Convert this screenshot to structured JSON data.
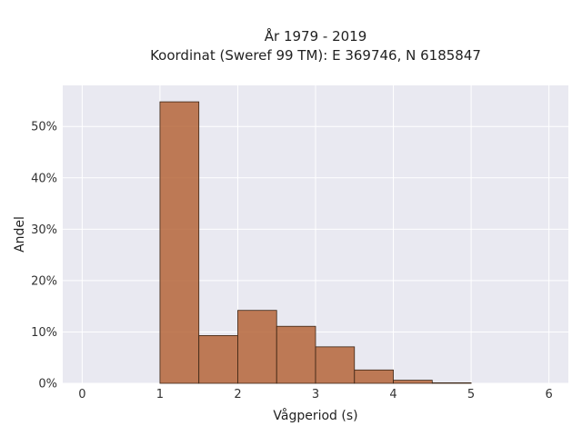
{
  "chart_data": {
    "type": "bar",
    "title_lines": [
      "År 1979 - 2019",
      "Koordinat (Sweref 99 TM): E 369746, N 6185847"
    ],
    "xlabel": "Vågperiod (s)",
    "ylabel": "Andel",
    "xlim": [
      -0.25,
      6.25
    ],
    "ylim": [
      0,
      58
    ],
    "x_ticks": [
      0,
      1,
      2,
      3,
      4,
      5,
      6
    ],
    "x_tick_labels": [
      "0",
      "1",
      "2",
      "3",
      "4",
      "5",
      "6"
    ],
    "y_ticks": [
      0,
      10,
      20,
      30,
      40,
      50
    ],
    "y_tick_labels": [
      "0%",
      "10%",
      "20%",
      "30%",
      "40%",
      "50%"
    ],
    "bins": [
      {
        "x0": 1.0,
        "x1": 1.5,
        "value": 54.8
      },
      {
        "x0": 1.5,
        "x1": 2.0,
        "value": 9.3
      },
      {
        "x0": 2.0,
        "x1": 2.5,
        "value": 14.2
      },
      {
        "x0": 2.5,
        "x1": 3.0,
        "value": 11.1
      },
      {
        "x0": 3.0,
        "x1": 3.5,
        "value": 7.1
      },
      {
        "x0": 3.5,
        "x1": 4.0,
        "value": 2.6
      },
      {
        "x0": 4.0,
        "x1": 4.5,
        "value": 0.6
      },
      {
        "x0": 4.5,
        "x1": 5.0,
        "value": 0.1
      }
    ],
    "grid": true,
    "colors": {
      "bar": "#b5653a",
      "bar_edge": "#3a2414",
      "plot_bg": "#e9e9f1",
      "grid": "#ffffff"
    }
  }
}
